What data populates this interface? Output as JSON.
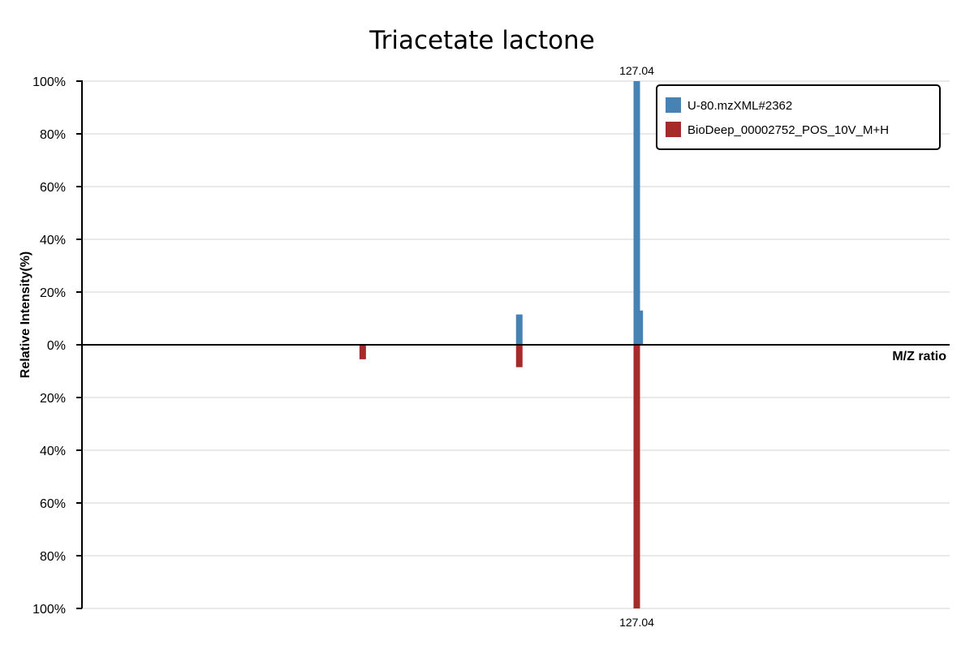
{
  "chart_data": {
    "type": "bar",
    "title": "Triacetate lactone",
    "xlabel": "M/Z ratio",
    "ylabel": "Relative Intensity(%)",
    "y_ticks_top": [
      "100%",
      "80%",
      "60%",
      "40%",
      "20%",
      "0%"
    ],
    "y_ticks_bottom": [
      "20%",
      "40%",
      "60%",
      "80%",
      "100%"
    ],
    "ylim": [
      -100,
      100
    ],
    "xlim": [
      42,
      175
    ],
    "grid": true,
    "legend_position": "top-right",
    "series": [
      {
        "name": "U-80.mzXML#2362",
        "color": "#4682b4",
        "direction": "up",
        "peaks": [
          {
            "mz": 109.03,
            "intensity": 11.5
          },
          {
            "mz": 127.04,
            "intensity": 100,
            "label": "127.04"
          },
          {
            "mz": 127.5,
            "intensity": 13
          }
        ]
      },
      {
        "name": "BioDeep_00002752_POS_10V_M+H",
        "color": "#a52a2a",
        "direction": "down",
        "peaks": [
          {
            "mz": 85.03,
            "intensity": 5.5
          },
          {
            "mz": 109.03,
            "intensity": 8.5
          },
          {
            "mz": 127.04,
            "intensity": 100,
            "label": "127.04"
          }
        ]
      }
    ]
  }
}
